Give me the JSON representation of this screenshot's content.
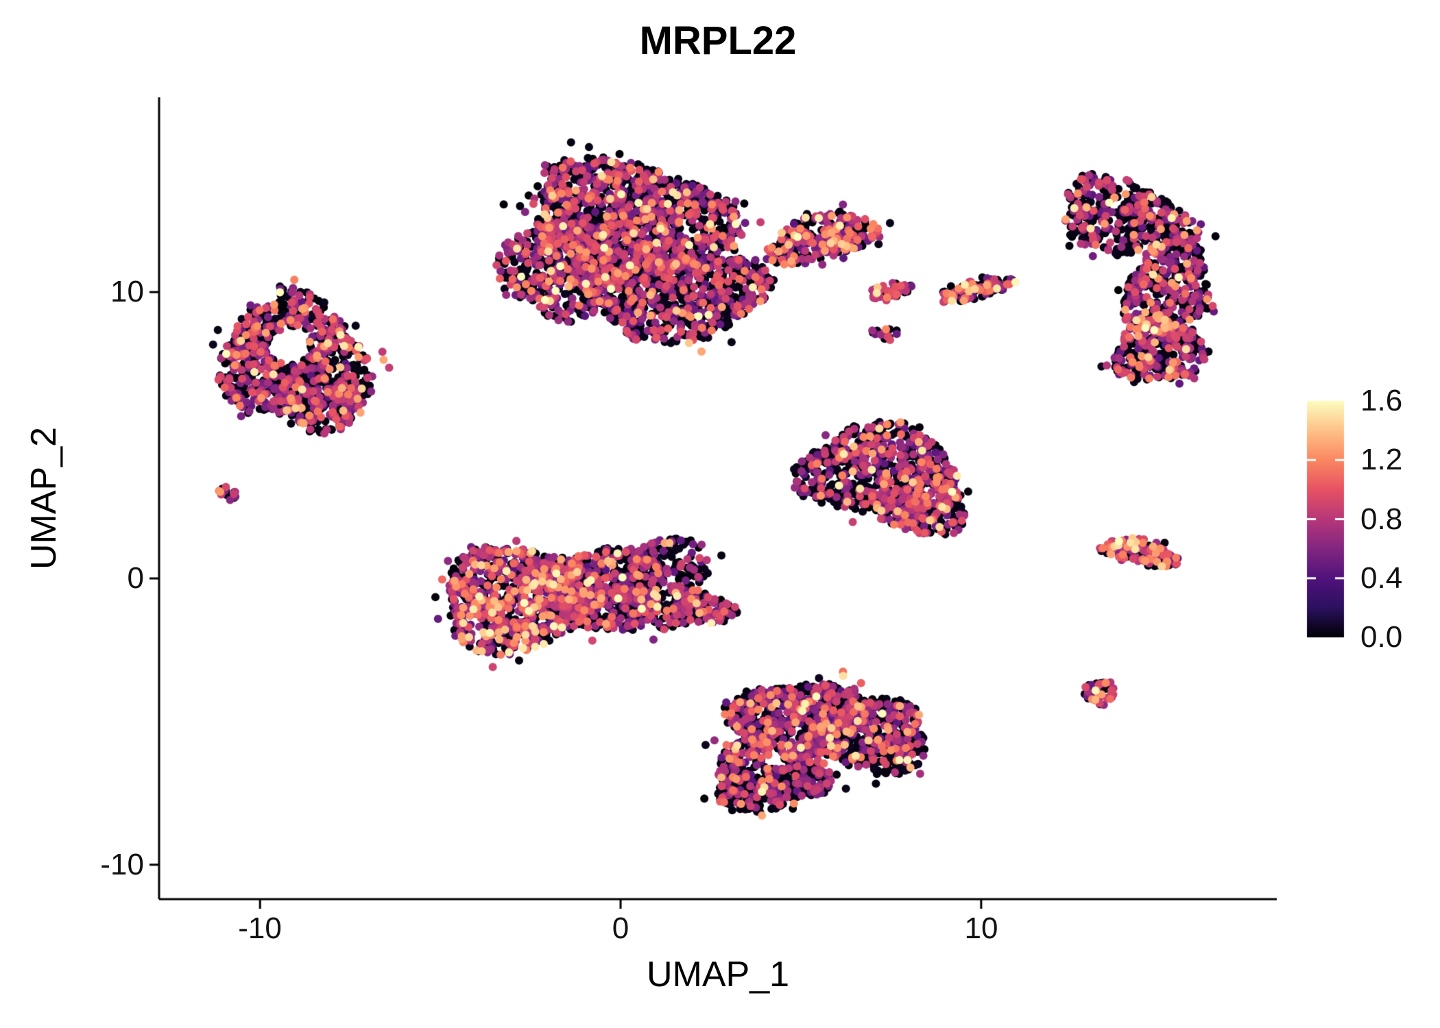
{
  "chart_data": {
    "type": "scatter",
    "title": "MRPL22",
    "xlabel": "UMAP_1",
    "ylabel": "UMAP_2",
    "xlim": [
      -12.8,
      18.2
    ],
    "ylim": [
      -11.2,
      16.8
    ],
    "x_ticks": [
      -10,
      0,
      10
    ],
    "x_tick_labels": [
      "-10",
      "0",
      "10"
    ],
    "y_ticks": [
      10,
      0,
      -10
    ],
    "y_tick_labels": [
      "10",
      "0",
      "-10"
    ],
    "grid": false,
    "background": "#ffffff",
    "axis_color": "#000000",
    "point_value_max": 1.65,
    "seed": 1337,
    "colorbar": {
      "min": 0.0,
      "max": 1.6,
      "ticks": [
        1.6,
        1.2,
        0.8,
        0.4,
        0.0
      ],
      "tick_labels": [
        "1.6",
        "1.2",
        "0.8",
        "0.4",
        "0.0"
      ],
      "inner_tick_values": [
        1.2,
        0.8,
        0.4
      ],
      "position": "right"
    },
    "colormap": {
      "name": "magma",
      "stops": [
        [
          0.0,
          "#000004"
        ],
        [
          0.125,
          "#2c115f"
        ],
        [
          0.25,
          "#51127c"
        ],
        [
          0.375,
          "#822681"
        ],
        [
          0.5,
          "#b73779"
        ],
        [
          0.625,
          "#e75263"
        ],
        [
          0.75,
          "#fb8761"
        ],
        [
          0.875,
          "#fec287"
        ],
        [
          1.0,
          "#fcfdbf"
        ]
      ]
    },
    "clusters": [
      {
        "name": "top-center-main",
        "cx": 0.2,
        "cy": 12.4,
        "rx": 2.9,
        "ry": 2.2,
        "rot": -8,
        "n": 1350,
        "mix": [
          0.52,
          0.38,
          0.08
        ]
      },
      {
        "name": "top-center-lower",
        "cx": 1.6,
        "cy": 9.9,
        "rx": 2.5,
        "ry": 1.5,
        "rot": 5,
        "n": 750,
        "mix": [
          0.55,
          0.36,
          0.07
        ]
      },
      {
        "name": "top-center-left",
        "cx": -1.7,
        "cy": 10.8,
        "rx": 1.6,
        "ry": 1.7,
        "rot": 0,
        "n": 420,
        "mix": [
          0.55,
          0.36,
          0.07
        ]
      },
      {
        "name": "top-center-arm",
        "cx": 5.6,
        "cy": 11.9,
        "rx": 1.6,
        "ry": 0.8,
        "rot": 18,
        "n": 260,
        "mix": [
          0.38,
          0.42,
          0.16
        ]
      },
      {
        "name": "top-right-upper",
        "cx": 14.0,
        "cy": 12.6,
        "rx": 1.9,
        "ry": 1.25,
        "rot": -18,
        "n": 380,
        "mix": [
          0.55,
          0.37,
          0.06
        ]
      },
      {
        "name": "top-right-mid",
        "cx": 15.2,
        "cy": 10.1,
        "rx": 1.15,
        "ry": 1.9,
        "rot": -8,
        "n": 380,
        "mix": [
          0.55,
          0.37,
          0.06
        ]
      },
      {
        "name": "top-right-lower",
        "cx": 14.9,
        "cy": 7.9,
        "rx": 1.3,
        "ry": 1.1,
        "rot": 0,
        "n": 300,
        "mix": [
          0.5,
          0.36,
          0.11
        ]
      },
      {
        "name": "left-ring",
        "cx": -9.1,
        "cy": 7.7,
        "rx": 2.0,
        "ry": 2.1,
        "rot": 0,
        "n": 750,
        "mix": [
          0.52,
          0.38,
          0.08
        ],
        "hole": [
          -9.2,
          8.1,
          0.6
        ]
      },
      {
        "name": "left-ring-foot",
        "cx": -8.1,
        "cy": 6.0,
        "rx": 1.2,
        "ry": 0.8,
        "rot": 20,
        "n": 160,
        "mix": [
          0.52,
          0.38,
          0.08
        ]
      },
      {
        "name": "left-tiny-dot",
        "cx": -10.9,
        "cy": 3.0,
        "rx": 0.3,
        "ry": 0.25,
        "rot": 0,
        "n": 14,
        "mix": [
          0.3,
          0.5,
          0.2
        ]
      },
      {
        "name": "mid-streak-small",
        "cx": 7.5,
        "cy": 10.05,
        "rx": 0.6,
        "ry": 0.28,
        "rot": 18,
        "n": 45,
        "mix": [
          0.35,
          0.45,
          0.15
        ]
      },
      {
        "name": "mid-streak-long",
        "cx": 9.9,
        "cy": 10.1,
        "rx": 1.15,
        "ry": 0.3,
        "rot": 14,
        "n": 95,
        "mix": [
          0.4,
          0.4,
          0.15
        ]
      },
      {
        "name": "mid-tiny-dot",
        "cx": 7.3,
        "cy": 8.55,
        "rx": 0.35,
        "ry": 0.22,
        "rot": 0,
        "n": 18,
        "mix": [
          0.5,
          0.4,
          0.08
        ]
      },
      {
        "name": "center-right-triangle",
        "cx": 7.2,
        "cy": 3.7,
        "rx": 2.2,
        "ry": 1.6,
        "rot": -5,
        "n": 650,
        "mix": [
          0.52,
          0.38,
          0.08
        ]
      },
      {
        "name": "center-right-tip",
        "cx": 8.4,
        "cy": 2.5,
        "rx": 1.2,
        "ry": 1.0,
        "rot": 0,
        "n": 230,
        "mix": [
          0.52,
          0.38,
          0.08
        ]
      },
      {
        "name": "center-left-west",
        "cx": -2.8,
        "cy": -0.7,
        "rx": 2.2,
        "ry": 1.8,
        "rot": 10,
        "n": 850,
        "mix": [
          0.4,
          0.42,
          0.14
        ]
      },
      {
        "name": "center-left-mid",
        "cx": -0.6,
        "cy": -0.4,
        "rx": 1.9,
        "ry": 1.4,
        "rot": 0,
        "n": 520,
        "mix": [
          0.52,
          0.38,
          0.08
        ]
      },
      {
        "name": "center-left-east",
        "cx": 1.2,
        "cy": -0.1,
        "rx": 1.3,
        "ry": 1.6,
        "rot": 0,
        "n": 300,
        "mix": [
          0.68,
          0.28,
          0.03
        ]
      },
      {
        "name": "center-left-tail",
        "cx": 2.3,
        "cy": -1.0,
        "rx": 0.9,
        "ry": 0.5,
        "rot": -20,
        "n": 110,
        "mix": [
          0.6,
          0.32,
          0.06
        ]
      },
      {
        "name": "bottom-west",
        "cx": 4.9,
        "cy": -4.9,
        "rx": 1.9,
        "ry": 1.3,
        "rot": 8,
        "n": 560,
        "mix": [
          0.55,
          0.36,
          0.07
        ]
      },
      {
        "name": "bottom-east",
        "cx": 6.9,
        "cy": -5.5,
        "rx": 1.7,
        "ry": 1.25,
        "rot": -6,
        "n": 480,
        "mix": [
          0.55,
          0.36,
          0.07
        ]
      },
      {
        "name": "bottom-south",
        "cx": 4.1,
        "cy": -6.9,
        "rx": 1.6,
        "ry": 1.25,
        "rot": 0,
        "n": 460,
        "mix": [
          0.62,
          0.3,
          0.06
        ],
        "hole": [
          4.4,
          -6.15,
          0.5
        ]
      },
      {
        "name": "right-small-bar",
        "cx": 14.4,
        "cy": 0.9,
        "rx": 1.1,
        "ry": 0.45,
        "rot": -14,
        "n": 140,
        "mix": [
          0.3,
          0.42,
          0.22
        ]
      },
      {
        "name": "right-small-dot",
        "cx": 13.3,
        "cy": -4.0,
        "rx": 0.45,
        "ry": 0.4,
        "rot": 0,
        "n": 50,
        "mix": [
          0.45,
          0.4,
          0.12
        ]
      }
    ]
  }
}
